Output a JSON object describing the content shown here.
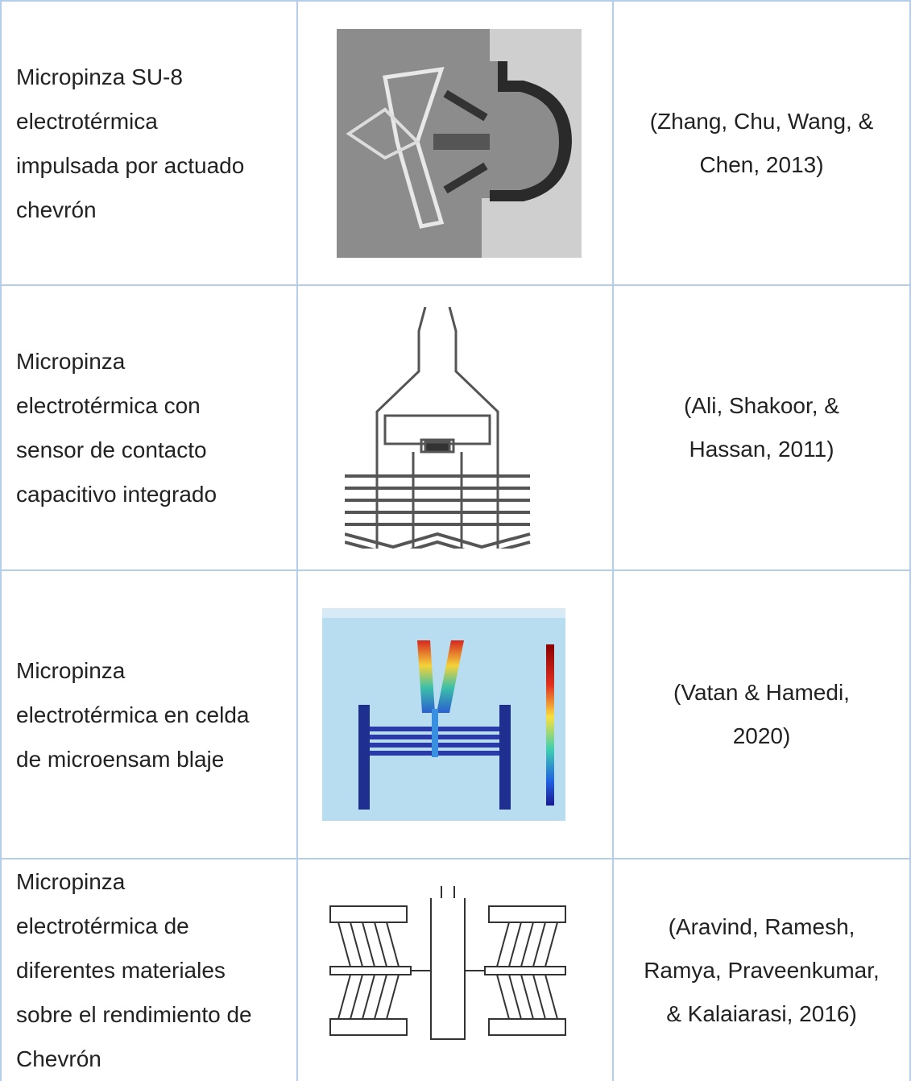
{
  "table": {
    "rows": [
      {
        "description": [
          "Micropinza SU-8",
          "electrotérmica",
          "impulsada por actuado",
          "chevrón"
        ],
        "reference": [
          "(Zhang, Chu, Wang, &",
          "Chen, 2013)"
        ]
      },
      {
        "description": [
          "Micropinza",
          "electrotérmica con",
          "sensor de contacto",
          "capacitivo integrado"
        ],
        "reference": [
          "(Ali, Shakoor, &",
          "Hassan, 2011)"
        ]
      },
      {
        "description": [
          "Micropinza",
          "electrotérmica en celda",
          "de microensam blaje"
        ],
        "reference": [
          "(Vatan & Hamedi,",
          "2020)"
        ]
      },
      {
        "description": [
          "Micropinza",
          "electrotérmica de",
          "diferentes materiales",
          "sobre el rendimiento de",
          "Chevrón"
        ],
        "reference": [
          "(Aravind, Ramesh,",
          "Ramya, Praveenkumar,",
          "& Kalaiarasi, 2016)"
        ]
      }
    ]
  }
}
